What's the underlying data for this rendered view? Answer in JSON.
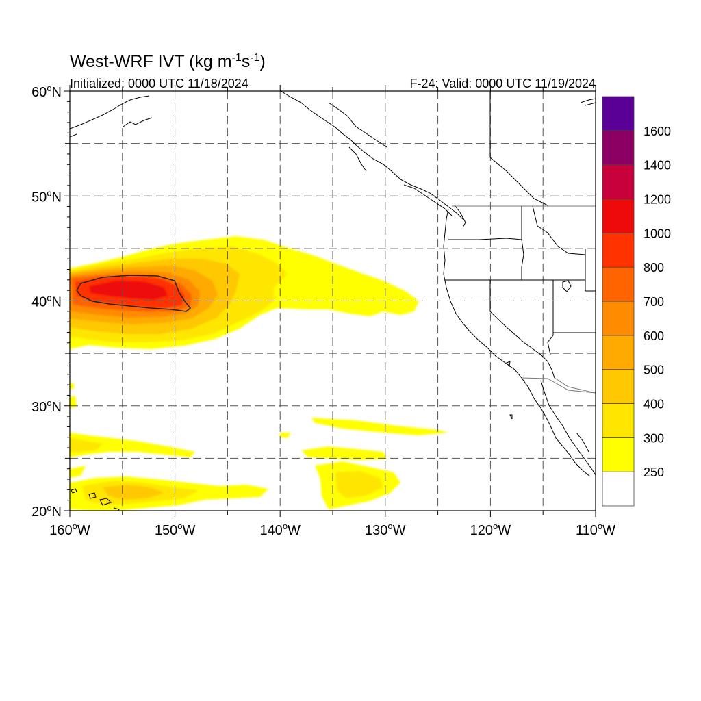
{
  "title": {
    "main": "West-WRF IVT (kg m",
    "exp1": "-1",
    "mid": "s",
    "exp2": "-1",
    "end": ")"
  },
  "subtitle_left": "Initialized: 0000 UTC 11/18/2024",
  "subtitle_right": "F-24: Valid: 0000 UTC 11/19/2024",
  "map": {
    "lon_range": [
      -160,
      -110
    ],
    "lat_range": [
      20,
      60
    ],
    "lon_ticks": [
      {
        "label": "160",
        "hemi": "W"
      },
      {
        "label": "150",
        "hemi": "W"
      },
      {
        "label": "140",
        "hemi": "W"
      },
      {
        "label": "130",
        "hemi": "W"
      },
      {
        "label": "120",
        "hemi": "W"
      },
      {
        "label": "110",
        "hemi": "W"
      }
    ],
    "lat_ticks": [
      {
        "label": "20",
        "hemi": "N"
      },
      {
        "label": "30",
        "hemi": "N"
      },
      {
        "label": "40",
        "hemi": "N"
      },
      {
        "label": "50",
        "hemi": "N"
      },
      {
        "label": "60",
        "hemi": "N"
      }
    ],
    "degree_symbol": "o",
    "gridlines": "dashed, every 5 degrees",
    "coastline_color": "#000000"
  },
  "colorbar": {
    "labels": [
      "250",
      "300",
      "400",
      "500",
      "600",
      "700",
      "800",
      "1000",
      "1200",
      "1400",
      "1600"
    ],
    "colors": [
      "#ffffff",
      "#ffff00",
      "#ffe600",
      "#ffc800",
      "#ffaa00",
      "#ff8c00",
      "#ff6400",
      "#ff3200",
      "#ee0a0a",
      "#c8003c",
      "#8c0064",
      "#5a0096"
    ],
    "placement": "right"
  }
}
